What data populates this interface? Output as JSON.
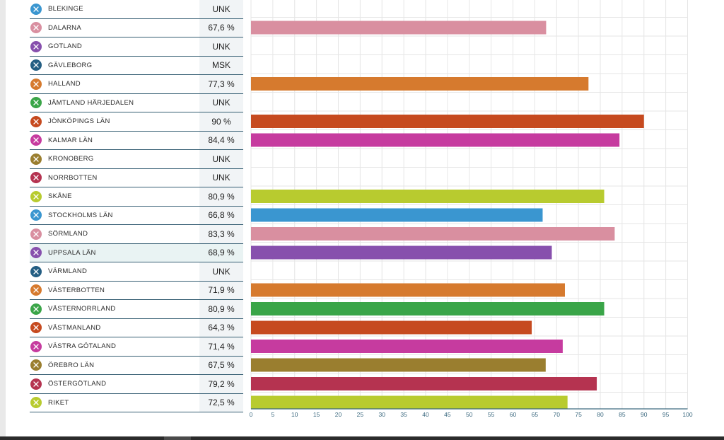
{
  "chart_data": {
    "type": "bar",
    "orientation": "horizontal",
    "categories": [
      "BLEKINGE",
      "DALARNA",
      "GOTLAND",
      "GÄVLEBORG",
      "HALLAND",
      "JÄMTLAND HÄRJEDALEN",
      "JÖNKÖPINGS LÄN",
      "KALMAR LÄN",
      "KRONOBERG",
      "NORRBOTTEN",
      "SKÅNE",
      "STOCKHOLMS LÄN",
      "SÖRMLAND",
      "UPPSALA LÄN",
      "VÄRMLAND",
      "VÄSTERBOTTEN",
      "VÄSTERNORRLAND",
      "VÄSTMANLAND",
      "VÄSTRA GÖTALAND",
      "ÖREBRO LÄN",
      "ÖSTERGÖTLAND",
      "RIKET"
    ],
    "values": [
      null,
      67.6,
      null,
      null,
      77.3,
      null,
      90,
      84.4,
      null,
      null,
      80.9,
      66.8,
      83.3,
      68.9,
      null,
      71.9,
      80.9,
      64.3,
      71.4,
      67.5,
      79.2,
      72.5
    ],
    "value_labels": [
      "UNK",
      "67,6 %",
      "UNK",
      "MSK",
      "77,3 %",
      "UNK",
      "90 %",
      "84,4 %",
      "UNK",
      "UNK",
      "80,9 %",
      "66,8 %",
      "83,3 %",
      "68,9 %",
      "UNK",
      "71,9 %",
      "80,9 %",
      "64,3 %",
      "71,4 %",
      "67,5 %",
      "79,2 %",
      "72,5 %"
    ],
    "colors": [
      "#3a96d0",
      "#d98fa0",
      "#8750ad",
      "#245e83",
      "#d67a2e",
      "#3aa548",
      "#c64a1f",
      "#c63b9f",
      "#9a7e2f",
      "#b53350",
      "#b8cb2f",
      "#3a96d0",
      "#d98fa0",
      "#8750ad",
      "#245e83",
      "#d67a2e",
      "#3aa548",
      "#c64a1f",
      "#c63b9f",
      "#9a7e2f",
      "#b53350",
      "#b8cb2f"
    ],
    "xlim": [
      0,
      100
    ],
    "x_ticks": [
      0,
      5,
      10,
      15,
      20,
      25,
      30,
      35,
      40,
      45,
      50,
      55,
      60,
      65,
      70,
      75,
      80,
      85,
      90,
      95,
      100
    ],
    "grid": true,
    "highlighted_row": 13
  }
}
